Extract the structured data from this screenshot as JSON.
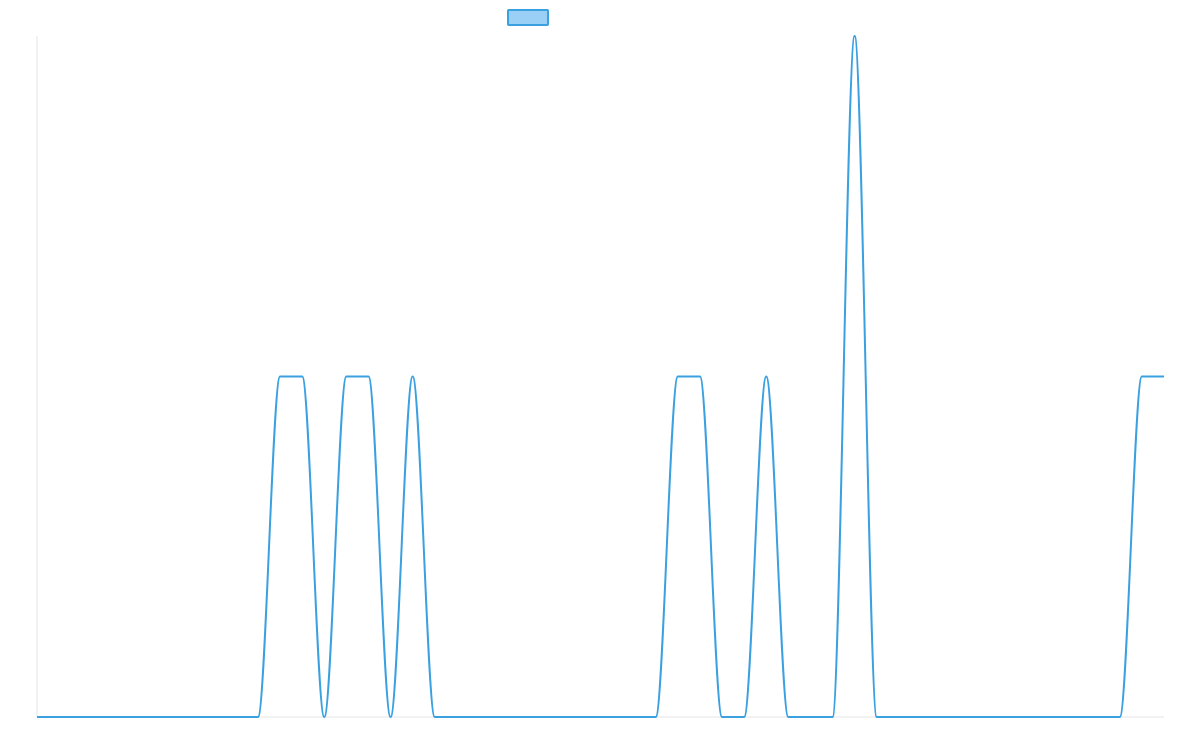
{
  "chart_data": {
    "type": "line",
    "title": "",
    "xlabel": "",
    "ylabel": "",
    "ylim": [
      0,
      2
    ],
    "grid": false,
    "legend": "top-center",
    "smooth": true,
    "colors": {
      "series_stroke": "#3aa0e0",
      "legend_fill": "#9ad0f5"
    },
    "x": [
      0,
      1,
      2,
      3,
      4,
      5,
      6,
      7,
      8,
      9,
      10,
      11,
      12,
      13,
      14,
      15,
      16,
      17,
      18,
      19,
      20,
      21,
      22,
      23,
      24,
      25,
      26,
      27,
      28,
      29,
      30,
      31,
      32,
      33,
      34,
      35,
      36,
      37,
      38,
      39,
      40,
      41,
      42,
      43,
      44,
      45,
      46,
      47,
      48,
      49,
      50,
      51
    ],
    "series": [
      {
        "values": [
          0,
          0,
          0,
          0,
          0,
          0,
          0,
          0,
          0,
          0,
          0,
          1,
          1,
          0,
          1,
          1,
          0,
          1,
          0,
          0,
          0,
          0,
          0,
          0,
          0,
          0,
          0,
          0,
          0,
          1,
          1,
          0,
          0,
          1,
          0,
          0,
          0,
          2,
          0,
          0,
          0,
          0,
          0,
          0,
          0,
          0,
          0,
          0,
          0,
          0,
          1,
          1
        ]
      }
    ]
  }
}
